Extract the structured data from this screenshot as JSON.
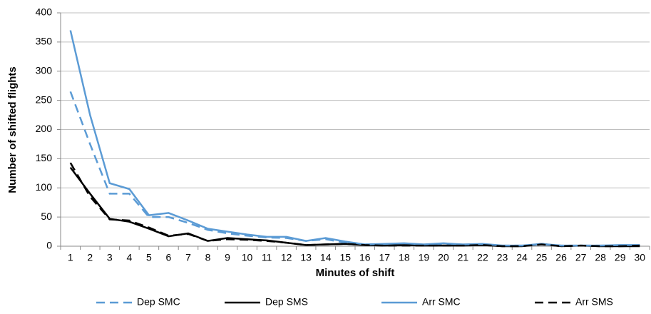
{
  "chart_data": {
    "type": "line",
    "x_label": "Minutes of shift",
    "y_label": "Number of shifted flights",
    "categories": [
      1,
      2,
      3,
      4,
      5,
      6,
      7,
      8,
      9,
      10,
      11,
      12,
      13,
      14,
      15,
      16,
      17,
      18,
      19,
      20,
      21,
      22,
      23,
      24,
      25,
      26,
      27,
      28,
      29,
      30
    ],
    "ylim": [
      0,
      400
    ],
    "yticks": [
      0,
      50,
      100,
      150,
      200,
      250,
      300,
      350,
      400
    ],
    "grid": true,
    "legend": "bottom",
    "series": [
      {
        "name": "Dep SMC",
        "color": "#5b9bd5",
        "dashed": true,
        "values": [
          265,
          175,
          90,
          90,
          50,
          50,
          40,
          28,
          22,
          18,
          15,
          14,
          9,
          12,
          6,
          3,
          3,
          4,
          2,
          4,
          2,
          3,
          1,
          1,
          3,
          1,
          1,
          1,
          1,
          1
        ]
      },
      {
        "name": "Dep SMS",
        "color": "#000000",
        "dashed": false,
        "values": [
          135,
          90,
          47,
          42,
          30,
          17,
          22,
          9,
          14,
          12,
          10,
          6,
          2,
          3,
          4,
          2,
          1,
          2,
          1,
          1,
          1,
          2,
          0,
          0,
          4,
          0,
          1,
          0,
          0,
          0
        ]
      },
      {
        "name": "Arr SMC",
        "color": "#5b9bd5",
        "dashed": false,
        "values": [
          370,
          225,
          108,
          98,
          53,
          57,
          44,
          30,
          25,
          20,
          16,
          16,
          9,
          14,
          8,
          3,
          4,
          5,
          3,
          5,
          3,
          4,
          1,
          1,
          4,
          1,
          1,
          1,
          2,
          2
        ]
      },
      {
        "name": "Arr SMS",
        "color": "#000000",
        "dashed": true,
        "values": [
          143,
          85,
          46,
          44,
          32,
          18,
          21,
          9,
          12,
          11,
          9,
          6,
          2,
          3,
          4,
          2,
          1,
          1,
          1,
          1,
          1,
          2,
          0,
          0,
          3,
          0,
          1,
          0,
          0,
          1
        ]
      }
    ]
  }
}
